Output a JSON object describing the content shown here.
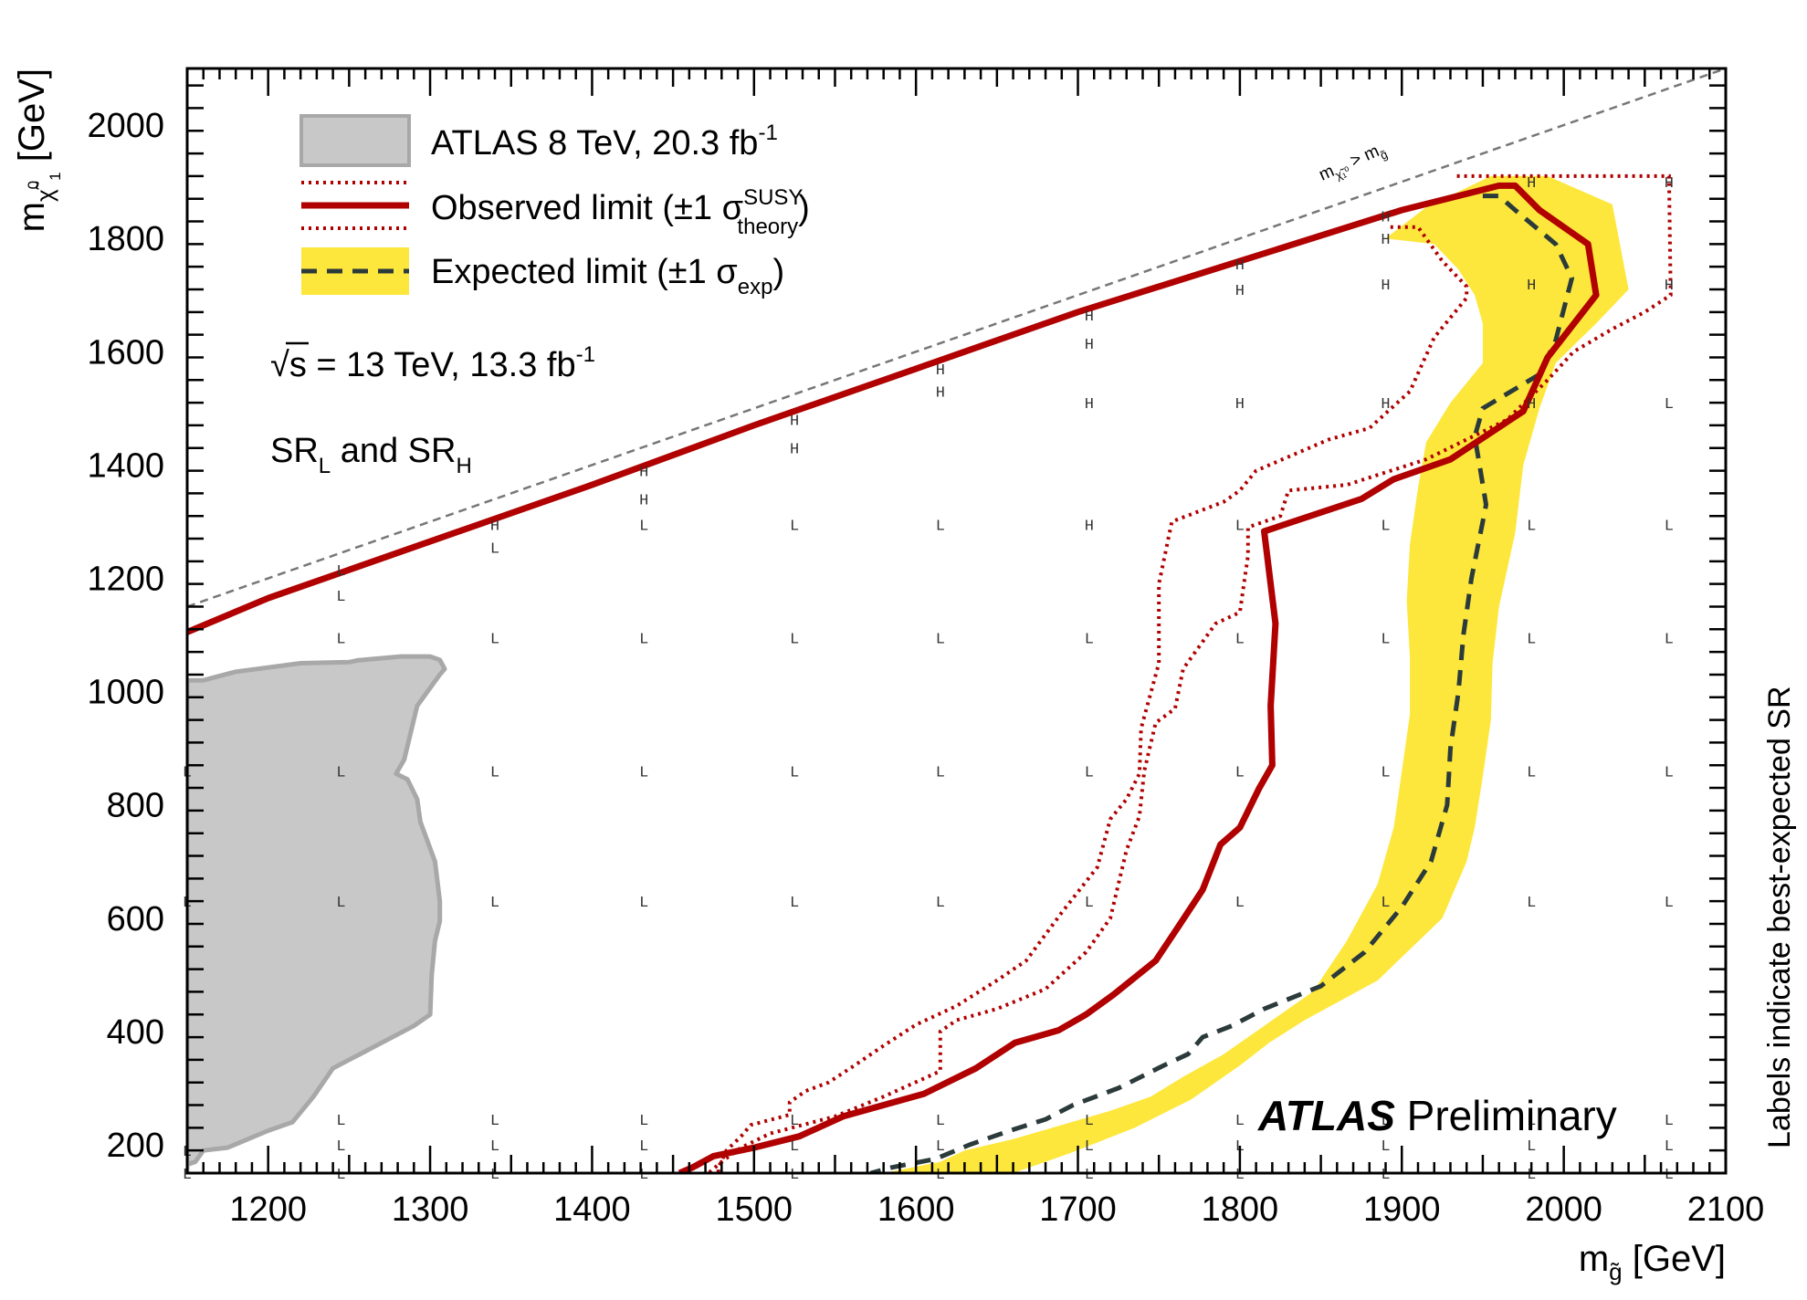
{
  "chart_data": {
    "type": "line",
    "x_axis": {
      "label_main": "m",
      "label_sub": "g̃",
      "label_unit": "[GeV]",
      "range": [
        1150,
        2100
      ],
      "ticks": [
        1200,
        1300,
        1400,
        1500,
        1600,
        1700,
        1800,
        1900,
        2000,
        2100
      ]
    },
    "y_axis": {
      "label_main": "m",
      "label_sub": "χ̃",
      "label_sup": "0",
      "label_sub2": "1",
      "label_unit": "[GeV]",
      "range": [
        150,
        2100
      ],
      "ticks": [
        200,
        400,
        600,
        800,
        1000,
        1200,
        1400,
        1600,
        1800,
        2000
      ]
    },
    "right_label": "Labels indicate best-expected SR",
    "diagonal_label": {
      "main": "m",
      "sub": "χ̃₁⁰",
      "op": ">",
      "main2": "m",
      "sub2": "g̃"
    },
    "legend": [
      {
        "kind": "area",
        "text": "ATLAS 8 TeV, 20.3 fb",
        "sup": "-1"
      },
      {
        "kind": "observed",
        "text_a": "Observed limit (±1 σ",
        "sup": "SUSY",
        "sub": "theory",
        "text_b": ")"
      },
      {
        "kind": "expected",
        "text_a": "Expected limit (±1 σ",
        "sub": "exp",
        "text_b": ")"
      }
    ],
    "energy_label": {
      "sqrt": "√s",
      "text": " = 13 TeV, 13.3 fb",
      "sup": "-1"
    },
    "sr_label": {
      "a": "SR",
      "a_sub": "L",
      "mid": " and SR",
      "b_sub": "H"
    },
    "atlas_label": {
      "bold": "ATLAS",
      "rest": " Preliminary"
    },
    "colors": {
      "observed": "#b00000",
      "expected": "#2b3a3a",
      "band": "#fde73c",
      "previous_fill": "#c8c8c8",
      "previous_edge": "#a8a8a8",
      "diagonal": "#777777"
    },
    "diagonal": [
      [
        1150,
        1150
      ],
      [
        2100,
        2100
      ]
    ],
    "previous_8tev": [
      [
        1150,
        1020
      ],
      [
        1160,
        1020
      ],
      [
        1180,
        1035
      ],
      [
        1220,
        1050
      ],
      [
        1250,
        1052
      ],
      [
        1255,
        1055
      ],
      [
        1282,
        1062
      ],
      [
        1300,
        1062
      ],
      [
        1306,
        1056
      ],
      [
        1309,
        1040
      ],
      [
        1306,
        1030
      ],
      [
        1292,
        975
      ],
      [
        1284,
        880
      ],
      [
        1279,
        855
      ],
      [
        1286,
        845
      ],
      [
        1292,
        810
      ],
      [
        1294,
        770
      ],
      [
        1303,
        700
      ],
      [
        1306,
        630
      ],
      [
        1306,
        595
      ],
      [
        1303,
        560
      ],
      [
        1301,
        500
      ],
      [
        1300,
        430
      ],
      [
        1290,
        410
      ],
      [
        1270,
        380
      ],
      [
        1260,
        365
      ],
      [
        1240,
        335
      ],
      [
        1228,
        285
      ],
      [
        1215,
        240
      ],
      [
        1200,
        225
      ],
      [
        1175,
        195
      ],
      [
        1160,
        190
      ],
      [
        1155,
        170
      ],
      [
        1150,
        165
      ]
    ],
    "observed": [
      [
        1150,
        1105
      ],
      [
        1200,
        1165
      ],
      [
        1300,
        1265
      ],
      [
        1400,
        1365
      ],
      [
        1500,
        1470
      ],
      [
        1600,
        1570
      ],
      [
        1700,
        1670
      ],
      [
        1800,
        1760
      ],
      [
        1900,
        1850
      ],
      [
        1960,
        1893
      ],
      [
        1970,
        1893
      ],
      [
        1985,
        1850
      ],
      [
        2015,
        1790
      ],
      [
        2020,
        1700
      ],
      [
        1990,
        1590
      ],
      [
        1975,
        1495
      ],
      [
        1930,
        1410
      ],
      [
        1895,
        1375
      ],
      [
        1875,
        1340
      ],
      [
        1815,
        1283
      ],
      [
        1822,
        1120
      ],
      [
        1819,
        975
      ],
      [
        1820,
        870
      ],
      [
        1812,
        830
      ],
      [
        1800,
        760
      ],
      [
        1788,
        730
      ],
      [
        1777,
        650
      ],
      [
        1762,
        585
      ],
      [
        1748,
        525
      ],
      [
        1722,
        465
      ],
      [
        1705,
        430
      ],
      [
        1688,
        402
      ],
      [
        1661,
        380
      ],
      [
        1637,
        335
      ],
      [
        1605,
        290
      ],
      [
        1555,
        250
      ],
      [
        1528,
        215
      ],
      [
        1500,
        195
      ],
      [
        1475,
        180
      ],
      [
        1462,
        160
      ],
      [
        1454,
        150
      ]
    ],
    "observed_plus": [
      [
        1893,
        1820
      ],
      [
        1910,
        1820
      ],
      [
        1925,
        1760
      ],
      [
        1940,
        1715
      ],
      [
        1940,
        1695
      ],
      [
        1920,
        1625
      ],
      [
        1905,
        1530
      ],
      [
        1880,
        1465
      ],
      [
        1855,
        1445
      ],
      [
        1810,
        1390
      ],
      [
        1800,
        1355
      ],
      [
        1790,
        1335
      ],
      [
        1758,
        1300
      ],
      [
        1750,
        1190
      ],
      [
        1750,
        1050
      ],
      [
        1739,
        935
      ],
      [
        1738,
        855
      ],
      [
        1730,
        810
      ],
      [
        1720,
        775
      ],
      [
        1712,
        690
      ],
      [
        1690,
        610
      ],
      [
        1668,
        525
      ],
      [
        1650,
        490
      ],
      [
        1625,
        445
      ],
      [
        1600,
        412
      ],
      [
        1580,
        375
      ],
      [
        1562,
        340
      ],
      [
        1546,
        310
      ],
      [
        1532,
        295
      ],
      [
        1522,
        275
      ],
      [
        1522,
        253
      ],
      [
        1498,
        235
      ],
      [
        1492,
        215
      ],
      [
        1483,
        190
      ],
      [
        1478,
        160
      ],
      [
        1478,
        150
      ]
    ],
    "observed_minus": [
      [
        1934,
        1910
      ],
      [
        2065,
        1910
      ],
      [
        2066,
        1700
      ],
      [
        2050,
        1670
      ],
      [
        2030,
        1640
      ],
      [
        2006,
        1600
      ],
      [
        1990,
        1550
      ],
      [
        1965,
        1480
      ],
      [
        1915,
        1410
      ],
      [
        1866,
        1365
      ],
      [
        1830,
        1355
      ],
      [
        1825,
        1310
      ],
      [
        1805,
        1290
      ],
      [
        1805,
        1240
      ],
      [
        1800,
        1140
      ],
      [
        1785,
        1120
      ],
      [
        1765,
        1040
      ],
      [
        1760,
        970
      ],
      [
        1748,
        945
      ],
      [
        1741,
        860
      ],
      [
        1738,
        780
      ],
      [
        1730,
        720
      ],
      [
        1720,
        600
      ],
      [
        1705,
        540
      ],
      [
        1680,
        475
      ],
      [
        1650,
        440
      ],
      [
        1625,
        420
      ],
      [
        1615,
        400
      ],
      [
        1615,
        330
      ],
      [
        1580,
        285
      ],
      [
        1550,
        250
      ],
      [
        1510,
        220
      ],
      [
        1492,
        195
      ],
      [
        1480,
        170
      ],
      [
        1472,
        150
      ]
    ],
    "expected": [
      [
        1950,
        1875
      ],
      [
        1960,
        1875
      ],
      [
        1970,
        1850
      ],
      [
        1995,
        1790
      ],
      [
        2005,
        1730
      ],
      [
        1995,
        1620
      ],
      [
        1985,
        1560
      ],
      [
        1950,
        1500
      ],
      [
        1945,
        1450
      ],
      [
        1948,
        1400
      ],
      [
        1952,
        1330
      ],
      [
        1950,
        1300
      ],
      [
        1943,
        1200
      ],
      [
        1938,
        1100
      ],
      [
        1935,
        1000
      ],
      [
        1930,
        900
      ],
      [
        1928,
        800
      ],
      [
        1918,
        700
      ],
      [
        1900,
        620
      ],
      [
        1877,
        540
      ],
      [
        1850,
        480
      ],
      [
        1815,
        440
      ],
      [
        1795,
        410
      ],
      [
        1777,
        390
      ],
      [
        1768,
        360
      ],
      [
        1753,
        340
      ],
      [
        1725,
        300
      ],
      [
        1697,
        270
      ],
      [
        1680,
        245
      ],
      [
        1658,
        225
      ],
      [
        1633,
        200
      ],
      [
        1612,
        175
      ],
      [
        1585,
        160
      ],
      [
        1572,
        150
      ]
    ],
    "expected_band": [
      [
        1890,
        1800
      ],
      [
        1915,
        1855
      ],
      [
        1955,
        1910
      ],
      [
        1990,
        1910
      ],
      [
        2030,
        1860
      ],
      [
        2040,
        1710
      ],
      [
        2020,
        1650
      ],
      [
        1995,
        1580
      ],
      [
        1985,
        1500
      ],
      [
        1975,
        1400
      ],
      [
        1970,
        1280
      ],
      [
        1960,
        1150
      ],
      [
        1956,
        1050
      ],
      [
        1955,
        950
      ],
      [
        1950,
        850
      ],
      [
        1945,
        760
      ],
      [
        1940,
        700
      ],
      [
        1925,
        600
      ],
      [
        1885,
        490
      ],
      [
        1840,
        420
      ],
      [
        1818,
        380
      ],
      [
        1800,
        340
      ],
      [
        1780,
        300
      ],
      [
        1770,
        280
      ],
      [
        1735,
        230
      ],
      [
        1695,
        185
      ],
      [
        1660,
        150
      ],
      [
        1580,
        150
      ],
      [
        1615,
        170
      ],
      [
        1630,
        190
      ],
      [
        1660,
        210
      ],
      [
        1690,
        235
      ],
      [
        1720,
        260
      ],
      [
        1745,
        285
      ],
      [
        1765,
        320
      ],
      [
        1790,
        360
      ],
      [
        1815,
        410
      ],
      [
        1845,
        470
      ],
      [
        1866,
        560
      ],
      [
        1885,
        660
      ],
      [
        1895,
        760
      ],
      [
        1900,
        860
      ],
      [
        1905,
        960
      ],
      [
        1905,
        1060
      ],
      [
        1903,
        1160
      ],
      [
        1905,
        1260
      ],
      [
        1910,
        1360
      ],
      [
        1915,
        1440
      ],
      [
        1930,
        1510
      ],
      [
        1950,
        1580
      ],
      [
        1950,
        1650
      ],
      [
        1945,
        1700
      ],
      [
        1935,
        1745
      ],
      [
        1920,
        1790
      ]
    ],
    "sr_points": [
      [
        1150,
        860,
        "L"
      ],
      [
        1150,
        630,
        "L"
      ],
      [
        1150,
        190,
        "L"
      ],
      [
        1150,
        150,
        "L"
      ],
      [
        1245,
        1215,
        "L"
      ],
      [
        1245,
        1170,
        "L"
      ],
      [
        1245,
        1095,
        "L"
      ],
      [
        1245,
        860,
        "L"
      ],
      [
        1245,
        630,
        "L"
      ],
      [
        1245,
        245,
        "L"
      ],
      [
        1245,
        200,
        "L"
      ],
      [
        1245,
        150,
        "L"
      ],
      [
        1340,
        1295,
        "H"
      ],
      [
        1340,
        1255,
        "L"
      ],
      [
        1340,
        1095,
        "L"
      ],
      [
        1340,
        860,
        "L"
      ],
      [
        1340,
        630,
        "L"
      ],
      [
        1340,
        245,
        "L"
      ],
      [
        1340,
        200,
        "L"
      ],
      [
        1340,
        150,
        "L"
      ],
      [
        1432,
        1390,
        "H"
      ],
      [
        1432,
        1340,
        "H"
      ],
      [
        1432,
        1295,
        "L"
      ],
      [
        1432,
        1095,
        "L"
      ],
      [
        1432,
        860,
        "L"
      ],
      [
        1432,
        630,
        "L"
      ],
      [
        1432,
        245,
        "L"
      ],
      [
        1432,
        200,
        "L"
      ],
      [
        1432,
        150,
        "L"
      ],
      [
        1525,
        1480,
        "H"
      ],
      [
        1525,
        1430,
        "H"
      ],
      [
        1525,
        1295,
        "L"
      ],
      [
        1525,
        1095,
        "L"
      ],
      [
        1525,
        860,
        "L"
      ],
      [
        1525,
        630,
        "L"
      ],
      [
        1525,
        245,
        "L"
      ],
      [
        1525,
        200,
        "L"
      ],
      [
        1525,
        150,
        "L"
      ],
      [
        1615,
        1570,
        "H"
      ],
      [
        1615,
        1530,
        "H"
      ],
      [
        1615,
        1295,
        "L"
      ],
      [
        1615,
        1095,
        "L"
      ],
      [
        1615,
        860,
        "L"
      ],
      [
        1615,
        630,
        "L"
      ],
      [
        1615,
        245,
        "L"
      ],
      [
        1615,
        200,
        "L"
      ],
      [
        1615,
        150,
        "L"
      ],
      [
        1707,
        1665,
        "H"
      ],
      [
        1707,
        1615,
        "H"
      ],
      [
        1707,
        1510,
        "H"
      ],
      [
        1707,
        1295,
        "H"
      ],
      [
        1707,
        1095,
        "L"
      ],
      [
        1707,
        860,
        "L"
      ],
      [
        1707,
        630,
        "L"
      ],
      [
        1707,
        245,
        "L"
      ],
      [
        1707,
        200,
        "L"
      ],
      [
        1707,
        150,
        "L"
      ],
      [
        1800,
        1755,
        "H"
      ],
      [
        1800,
        1710,
        "H"
      ],
      [
        1800,
        1510,
        "H"
      ],
      [
        1800,
        1295,
        "L"
      ],
      [
        1800,
        1095,
        "L"
      ],
      [
        1800,
        860,
        "L"
      ],
      [
        1800,
        630,
        "L"
      ],
      [
        1800,
        245,
        "L"
      ],
      [
        1800,
        200,
        "L"
      ],
      [
        1800,
        150,
        "L"
      ],
      [
        1890,
        1840,
        "H"
      ],
      [
        1890,
        1800,
        "H"
      ],
      [
        1890,
        1720,
        "H"
      ],
      [
        1890,
        1510,
        "H"
      ],
      [
        1890,
        1295,
        "L"
      ],
      [
        1890,
        1095,
        "L"
      ],
      [
        1890,
        860,
        "L"
      ],
      [
        1890,
        630,
        "L"
      ],
      [
        1890,
        245,
        "L"
      ],
      [
        1890,
        200,
        "L"
      ],
      [
        1890,
        150,
        "L"
      ],
      [
        1980,
        1900,
        "H"
      ],
      [
        1980,
        1720,
        "H"
      ],
      [
        1980,
        1510,
        "H"
      ],
      [
        1980,
        1295,
        "L"
      ],
      [
        1980,
        1095,
        "L"
      ],
      [
        1980,
        860,
        "L"
      ],
      [
        1980,
        630,
        "L"
      ],
      [
        1980,
        245,
        "L"
      ],
      [
        1980,
        200,
        "L"
      ],
      [
        1980,
        150,
        "L"
      ],
      [
        2065,
        1900,
        "H"
      ],
      [
        2065,
        1720,
        "H"
      ],
      [
        2065,
        1510,
        "L"
      ],
      [
        2065,
        1295,
        "L"
      ],
      [
        2065,
        1095,
        "L"
      ],
      [
        2065,
        860,
        "L"
      ],
      [
        2065,
        630,
        "L"
      ],
      [
        2065,
        245,
        "L"
      ],
      [
        2065,
        200,
        "L"
      ],
      [
        2065,
        150,
        "L"
      ]
    ]
  }
}
